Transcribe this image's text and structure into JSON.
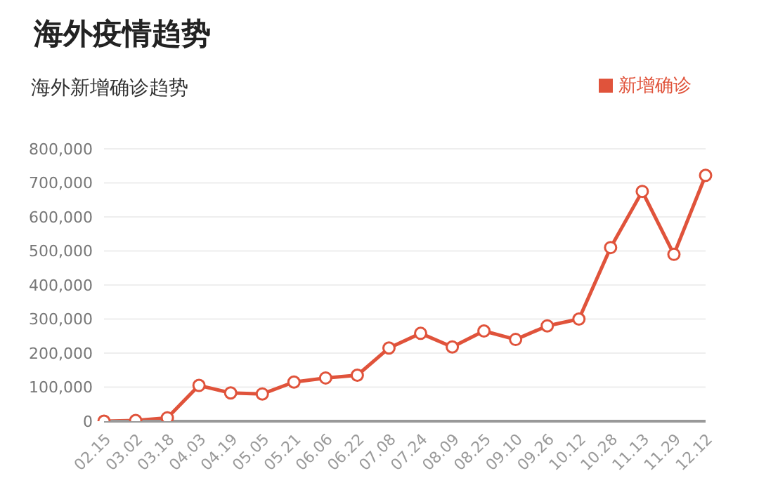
{
  "chart_data": {
    "type": "line",
    "title": "海外疫情趋势",
    "subtitle": "海外新增确诊趋势",
    "categories": [
      "02.15",
      "03.02",
      "03.18",
      "04.03",
      "04.19",
      "05.05",
      "05.21",
      "06.06",
      "06.22",
      "07.08",
      "07.24",
      "08.09",
      "08.25",
      "09.10",
      "09.26",
      "10.12",
      "10.28",
      "11.13",
      "11.29",
      "12.12"
    ],
    "series": [
      {
        "name": "新增确诊",
        "color": "#e0533b",
        "values": [
          0,
          2000,
          10000,
          105000,
          83000,
          80000,
          115000,
          127000,
          135000,
          215000,
          258000,
          218000,
          265000,
          240000,
          280000,
          300000,
          510000,
          675000,
          490000,
          722000
        ]
      }
    ],
    "ylim": [
      0,
      800000
    ],
    "yticks": [
      0,
      {
        "value": 100000,
        "label": "100,000"
      },
      {
        "value": 200000,
        "label": "200,000"
      },
      {
        "value": 300000,
        "label": "300,000"
      },
      {
        "value": 400000,
        "label": "400,000"
      },
      {
        "value": 500000,
        "label": "500,000"
      },
      {
        "value": 600000,
        "label": "600,000"
      },
      {
        "value": 700000,
        "label": "700,000"
      },
      {
        "value": 800000,
        "label": "800,000"
      }
    ],
    "grid": "y",
    "legend": "top right",
    "marker": "circle",
    "line_style": "solid"
  }
}
